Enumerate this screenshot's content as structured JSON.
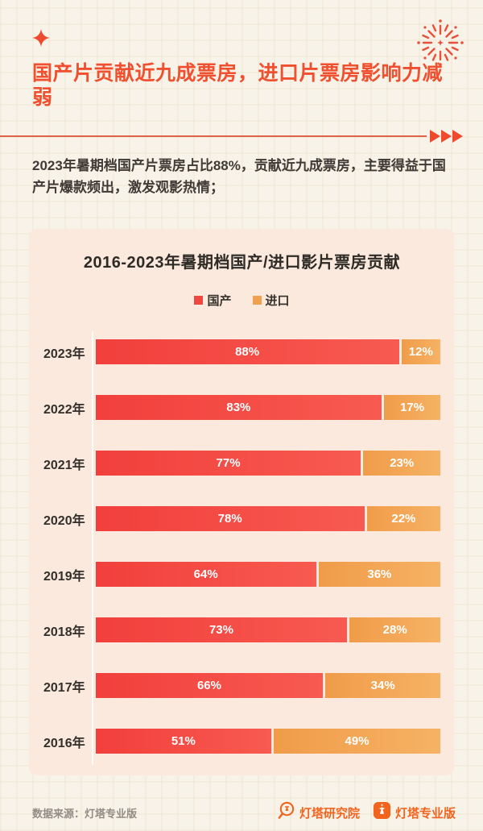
{
  "header": {
    "title": "国产片贡献近九成票房，进口片票房影响力减弱",
    "accent_color": "#f0502f"
  },
  "intro": "2023年暑期档国产片票房占比88%，贡献近九成票房，主要得益于国产片爆款频出，激发观影热情；",
  "chart_data": {
    "type": "bar",
    "orientation": "horizontal",
    "stacked": true,
    "title": "2016-2023年暑期档国产/进口影片票房贡献",
    "categories": [
      "2023年",
      "2022年",
      "2021年",
      "2020年",
      "2019年",
      "2018年",
      "2017年",
      "2016年"
    ],
    "series": [
      {
        "name": "国产",
        "color": "#ee4740",
        "values": [
          88,
          83,
          77,
          78,
          64,
          73,
          66,
          51
        ]
      },
      {
        "name": "进口",
        "color": "#f0a04f",
        "values": [
          12,
          17,
          23,
          22,
          36,
          28,
          34,
          49
        ]
      }
    ],
    "value_suffix": "%",
    "legend_position": "top",
    "xlim": [
      0,
      100
    ],
    "grid": false
  },
  "footer": {
    "source": "数据来源：灯塔专业版",
    "brand_research": "灯塔研究院",
    "brand_pro": "灯塔专业版",
    "brand_color": "#f2641e"
  },
  "icons": {
    "top_left": "sparkle-icon",
    "top_right": "fireworks-icon",
    "divider_end": "triple-arrow-icon",
    "brand_research": "lighthouse-magnifier-icon",
    "brand_pro": "lighthouse-badge-icon"
  }
}
